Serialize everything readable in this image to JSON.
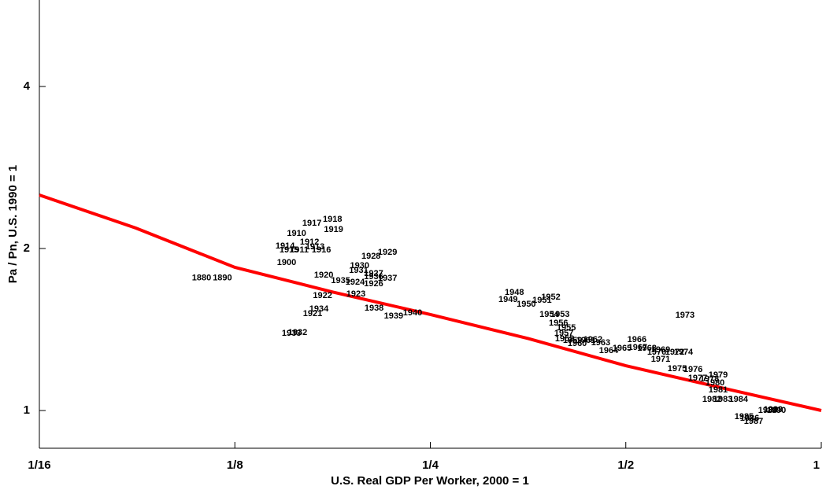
{
  "chart_data": {
    "type": "scatter",
    "x_label": "U.S. Real GDP Per Worker, 2000 = 1",
    "y_label": "Pa / Pn, U.S. 1990 = 1",
    "log_x": true,
    "log_y": true,
    "xlim": [
      0.0625,
      1
    ],
    "ylim": [
      0.851,
      5.79
    ],
    "xticks": [
      {
        "value": 0.0625,
        "label": "1/16"
      },
      {
        "value": 0.125,
        "label": "1/8"
      },
      {
        "value": 0.25,
        "label": "1/4"
      },
      {
        "value": 0.5,
        "label": "1/2"
      },
      1
    ],
    "yticks": [
      1,
      2,
      4
    ],
    "labels": [
      "1880",
      "1890",
      "1900",
      "1910",
      "1911",
      "1912",
      "1913",
      "1914",
      "1915",
      "1916",
      "1917",
      "1918",
      "1919",
      "1920",
      "1921",
      "1922",
      "1923",
      "1924",
      "1926",
      "1927",
      "1928",
      "1929",
      "1930",
      "1931",
      "1932",
      "1933",
      "1934",
      "1935",
      "1936",
      "1937",
      "1938",
      "1939",
      "1940",
      "1948",
      "1949",
      "1950",
      "1951",
      "1952",
      "1953",
      "1954",
      "1955",
      "1956",
      "1957",
      "1958",
      "1959",
      "1960",
      "1961",
      "1962",
      "1963",
      "1964",
      "1965",
      "1966",
      "1967",
      "1968",
      "1969",
      "1970",
      "1971",
      "1972",
      "1973",
      "1974",
      "1975",
      "1976",
      "1977",
      "1978",
      "1979",
      "1980",
      "1981",
      "1982",
      "1983",
      "1984",
      "1985",
      "1986",
      "1987",
      "1988",
      "1989",
      "1990"
    ],
    "x": [
      0.1111,
      0.1196,
      0.1502,
      0.1556,
      0.1571,
      0.1629,
      0.1661,
      0.1494,
      0.1515,
      0.1699,
      0.1643,
      0.1767,
      0.1774,
      0.1713,
      0.1647,
      0.1706,
      0.192,
      0.1915,
      0.2045,
      0.2045,
      0.2026,
      0.2148,
      0.1946,
      0.1939,
      0.1562,
      0.1528,
      0.1684,
      0.1819,
      0.2045,
      0.2148,
      0.2048,
      0.2195,
      0.2348,
      0.3368,
      0.3294,
      0.3513,
      0.3715,
      0.3833,
      0.396,
      0.381,
      0.4049,
      0.3938,
      0.4015,
      0.4026,
      0.414,
      0.4209,
      0.4339,
      0.4449,
      0.4575,
      0.4705,
      0.4935,
      0.5201,
      0.5215,
      0.539,
      0.5658,
      0.558,
      0.5658,
      0.5949,
      0.6168,
      0.6134,
      0.6,
      0.6346,
      0.6452,
      0.6727,
      0.6937,
      0.6861,
      0.6937,
      0.6785,
      0.7057,
      0.7455,
      0.7605,
      0.7757,
      0.7866,
      0.827,
      0.8432,
      0.8528
    ],
    "values": [
      1.762,
      1.762,
      1.883,
      2.132,
      1.986,
      2.055,
      2.014,
      2.02,
      1.986,
      1.986,
      2.228,
      2.265,
      2.168,
      1.784,
      1.513,
      1.634,
      1.645,
      1.73,
      1.719,
      1.796,
      1.934,
      1.967,
      1.857,
      1.82,
      1.395,
      1.391,
      1.543,
      1.742,
      1.772,
      1.76,
      1.549,
      1.498,
      1.518,
      1.657,
      1.607,
      1.575,
      1.602,
      1.623,
      1.508,
      1.508,
      1.424,
      1.453,
      1.391,
      1.358,
      1.349,
      1.331,
      1.349,
      1.354,
      1.335,
      1.291,
      1.305,
      1.354,
      1.309,
      1.305,
      1.296,
      1.283,
      1.245,
      1.283,
      1.502,
      1.283,
      1.195,
      1.191,
      1.148,
      1.144,
      1.163,
      1.125,
      1.091,
      1.048,
      1.048,
      1.048,
      0.973,
      0.967,
      0.954,
      1.0,
      1.003,
      1.0
    ],
    "fit": {
      "color": "#ff0000",
      "x": [
        0.0625,
        0.088,
        0.125,
        0.177,
        0.25,
        0.354,
        0.5,
        0.707,
        1
      ],
      "values": [
        2.514,
        2.183,
        1.845,
        1.66,
        1.508,
        1.36,
        1.211,
        1.1,
        1.0
      ]
    }
  }
}
